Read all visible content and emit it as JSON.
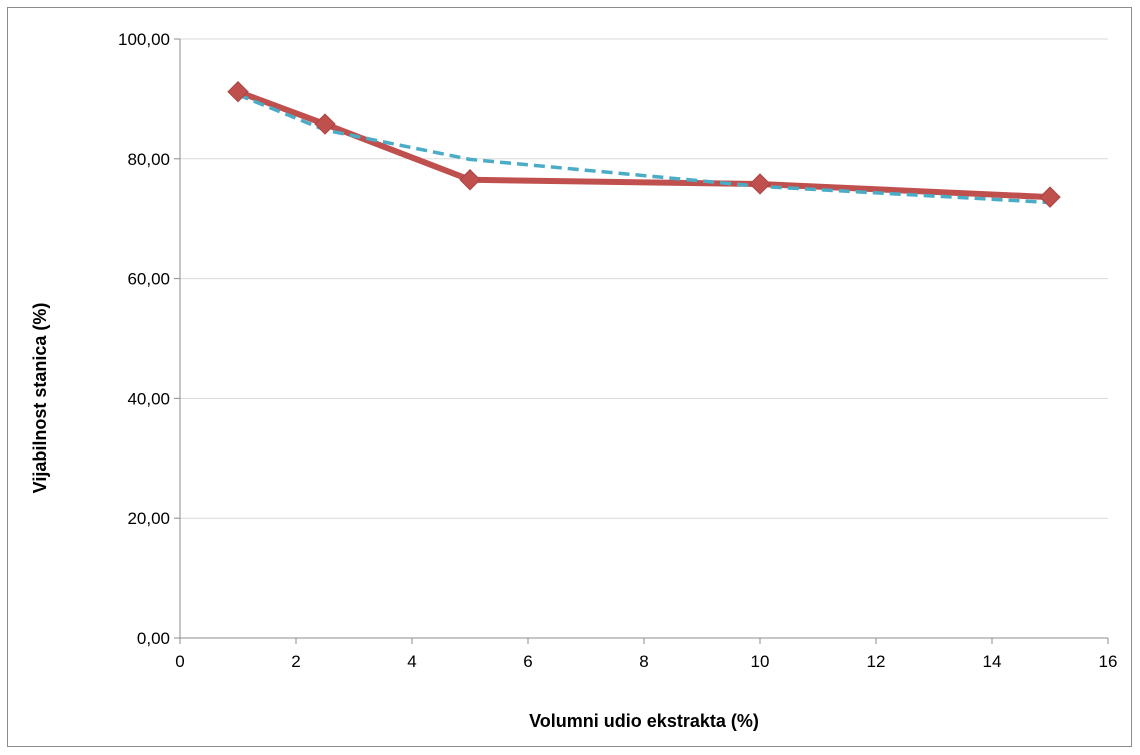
{
  "chart_data": {
    "type": "line",
    "title": "",
    "xlabel": "Volumni udio ekstrakta (%)",
    "ylabel": "Vijabilnost stanica (%)",
    "xlim": [
      0,
      16
    ],
    "ylim": [
      0,
      100
    ],
    "x_ticks": [
      "0",
      "2",
      "4",
      "6",
      "8",
      "10",
      "12",
      "14",
      "16"
    ],
    "y_ticks": [
      "0,00",
      "20,00",
      "40,00",
      "60,00",
      "80,00",
      "100,00"
    ],
    "grid": "horizontal",
    "legend": "none",
    "series": [
      {
        "kind": "data",
        "color": "#c0504d",
        "marker": "diamond",
        "x": [
          1,
          2.5,
          5,
          10,
          15
        ],
        "y": [
          91.2,
          85.8,
          76.5,
          75.8,
          73.6
        ]
      },
      {
        "kind": "trendline",
        "style": "dashed",
        "color": "#4bacc6",
        "x": [
          1,
          2.5,
          5,
          10,
          15
        ],
        "y": [
          90.7,
          84.8,
          79.9,
          75.4,
          72.7
        ]
      }
    ]
  }
}
